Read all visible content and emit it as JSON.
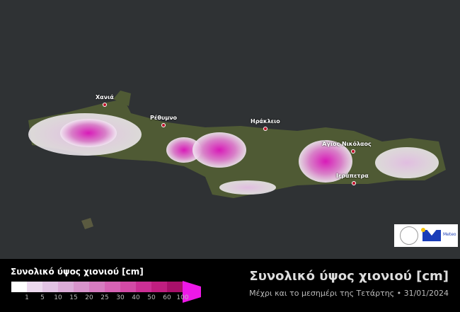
{
  "map": {
    "cities": [
      {
        "name": "Χανιά"
      },
      {
        "name": "Ρέθυμνο"
      },
      {
        "name": "Ηράκλειο"
      },
      {
        "name": "Άγιος Νικόλαος"
      },
      {
        "name": "Ιεράπετρα"
      }
    ],
    "sea_color": "#2f3234"
  },
  "logo": {
    "brand": "Meteo"
  },
  "legend": {
    "title": "Συνολικό ύψος χιονιού [cm]",
    "colors": [
      "#ffffff",
      "#ecd9ee",
      "#e2c3e4",
      "#dcacd8",
      "#d894cc",
      "#d67cc0",
      "#d663b4",
      "#d34aa6",
      "#cc2f95",
      "#c01e80",
      "#a8106a",
      "#ee18e8"
    ],
    "ticks": [
      "1",
      "5",
      "10",
      "15",
      "20",
      "25",
      "30",
      "40",
      "50",
      "60",
      "100"
    ]
  },
  "header": {
    "title": "Συνολικό ύψος χιονιού [cm]",
    "subtitle": "Μέχρι και το μεσημέρι της Τετάρτης • 31/01/2024"
  }
}
